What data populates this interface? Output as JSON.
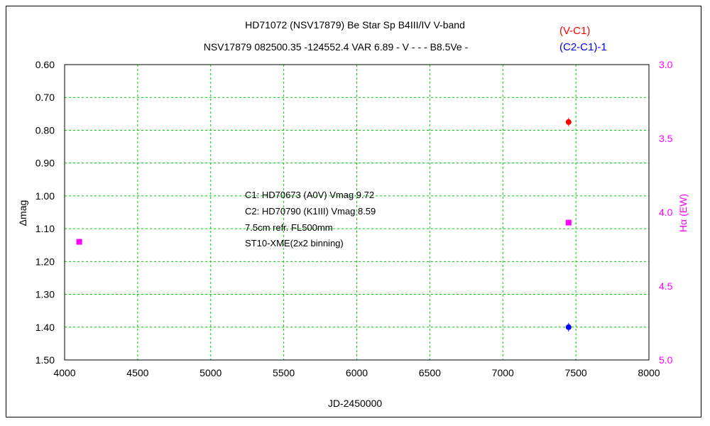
{
  "chart_data": {
    "type": "scatter",
    "title": "HD71072 (NSV17879)    Be Star    Sp B4III/IV    V-band",
    "subtitle": "NSV17879 082500.35 -124552.4 VAR 6.89 - V - - - B8.5Ve -",
    "xlabel": "JD-2450000",
    "ylabel": "Δmag",
    "y2label": "Hα (EW)",
    "xlim": [
      4000,
      8000
    ],
    "ylim": [
      0.6,
      1.5
    ],
    "y2lim": [
      3.0,
      5.0
    ],
    "x_ticks": [
      "4000",
      "4500",
      "5000",
      "5500",
      "6000",
      "6500",
      "7000",
      "7500",
      "8000"
    ],
    "y_ticks": [
      "0.60",
      "0.70",
      "0.80",
      "0.90",
      "1.00",
      "1.10",
      "1.20",
      "1.30",
      "1.40",
      "1.50"
    ],
    "y2_ticks": [
      "3.0",
      "3.5",
      "4.0",
      "4.5",
      "5.0"
    ],
    "grid": true,
    "legend_position": "top-right",
    "colors": {
      "v_c1": "#ff0000",
      "c2_c1": "#0000ff",
      "halpha": "#ff00ff",
      "grid": "#00cc00"
    },
    "series": [
      {
        "name": "(V-C1)",
        "axis": "left",
        "color": "#ff0000",
        "marker": "circle",
        "x": [
          7450
        ],
        "y": [
          0.775
        ]
      },
      {
        "name": "(C2-C1)-1",
        "axis": "left",
        "color": "#0000ff",
        "marker": "circle",
        "x": [
          7450
        ],
        "y": [
          1.4
        ]
      },
      {
        "axis": "right",
        "color": "#ff00ff",
        "marker": "square",
        "x": [
          4100,
          7450
        ],
        "y": [
          4.2,
          4.07
        ]
      }
    ],
    "annotations": [
      "C1: HD70673 (A0V) Vmag 9.72",
      "C2: HD70790 (K1III) Vmag 8.59",
      "7.5cm refr. FL500mm",
      "ST10-XME(2x2 binning)"
    ]
  }
}
